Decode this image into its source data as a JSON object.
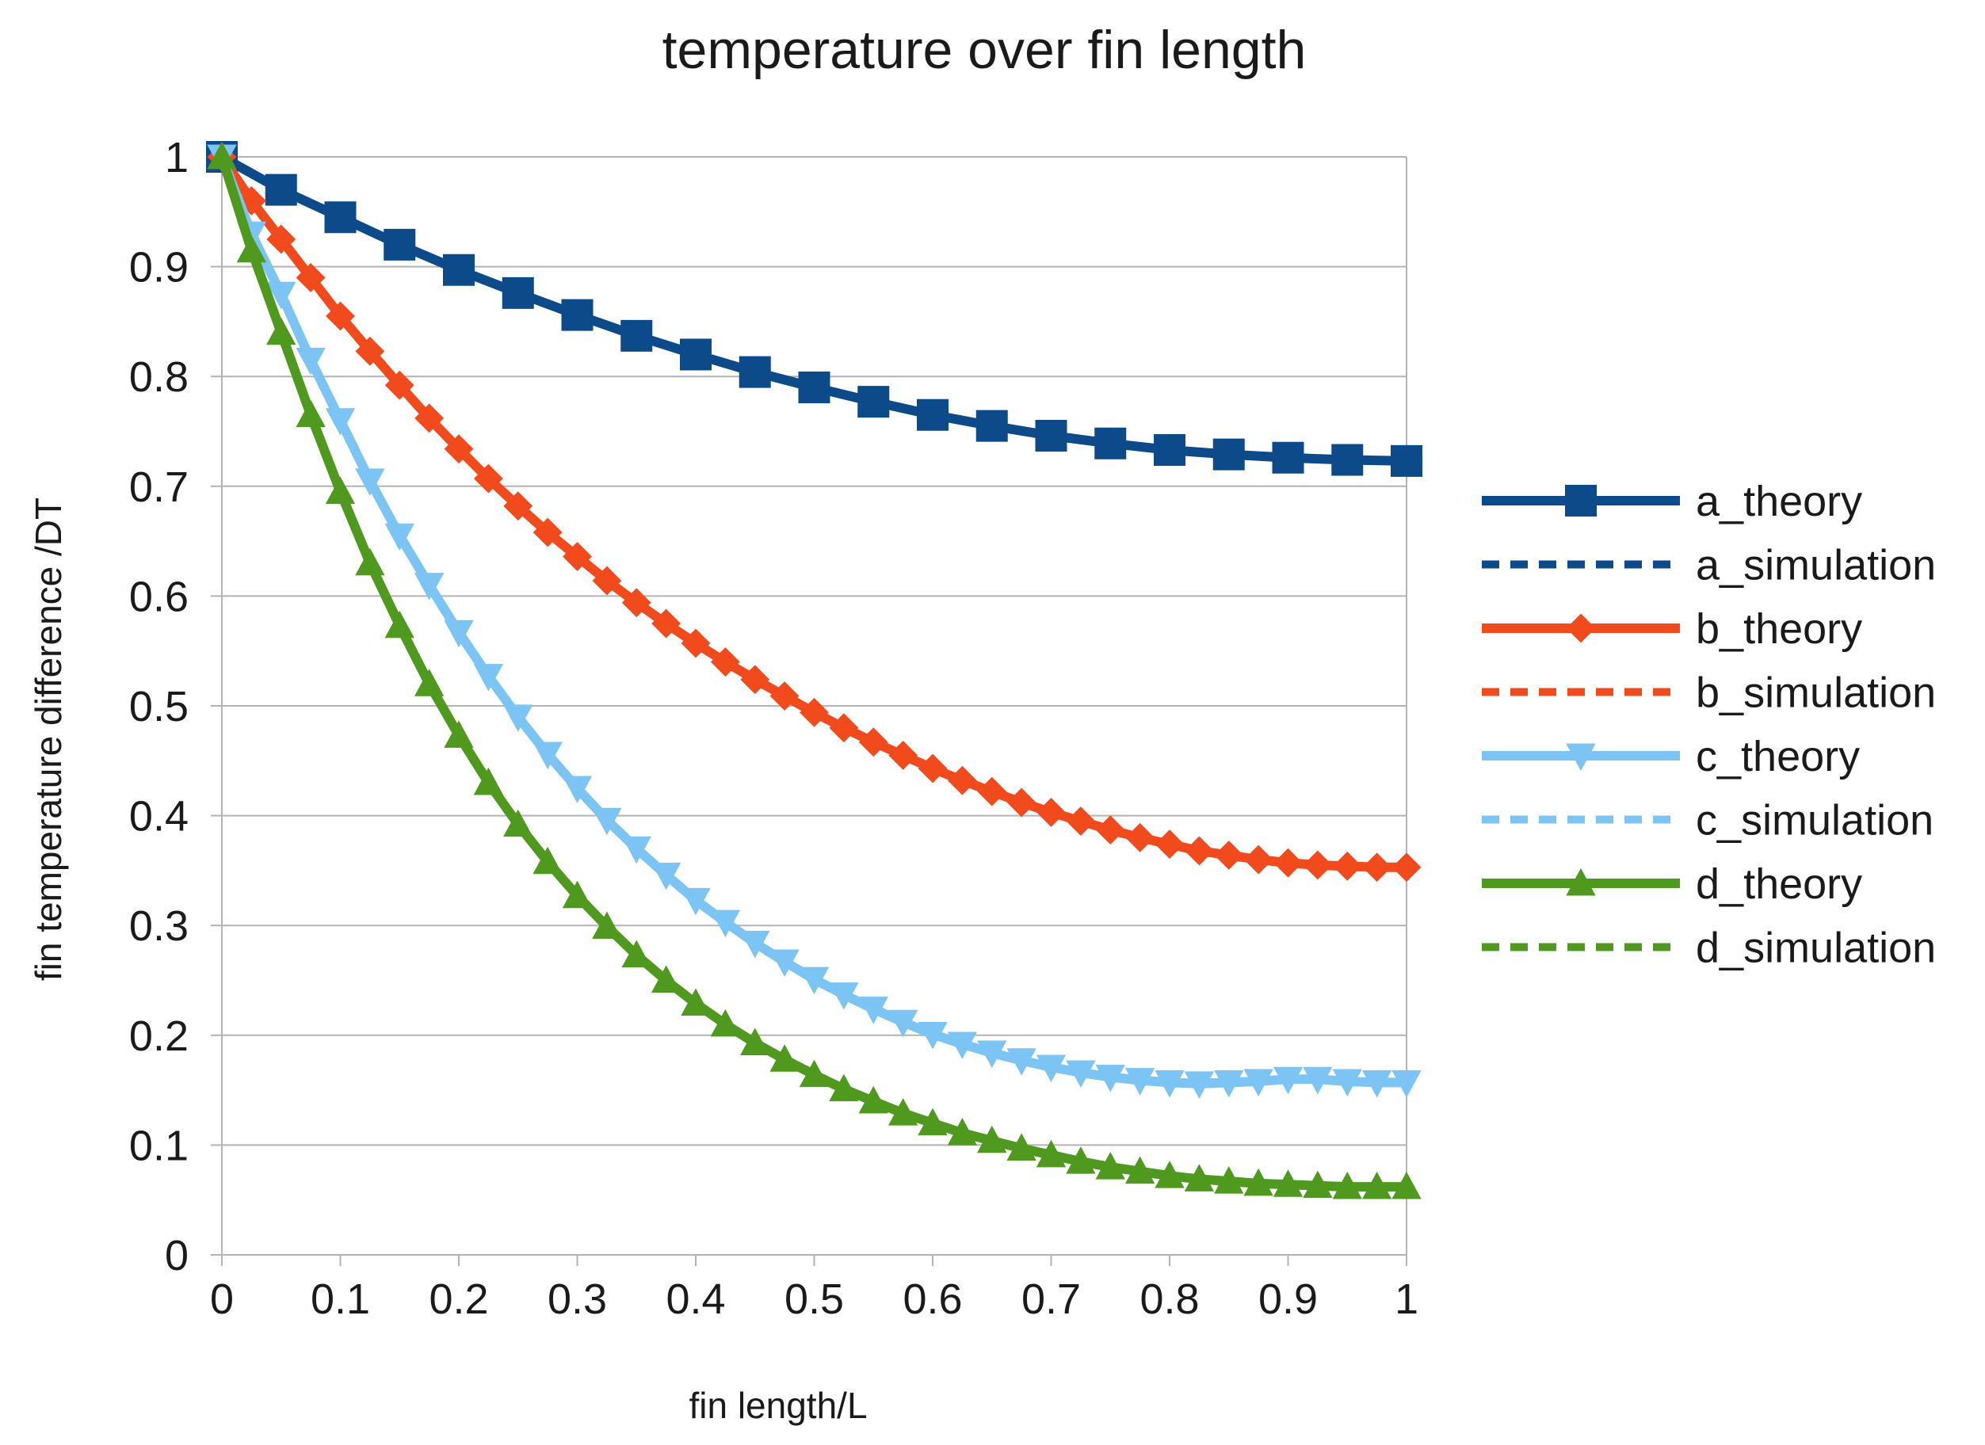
{
  "chart_data": {
    "type": "line",
    "title": "temperature over fin length",
    "xlabel": "fin length/L",
    "ylabel": "fin temperature difference /DT",
    "xlim": [
      0,
      1
    ],
    "ylim": [
      0,
      1
    ],
    "x_ticks": [
      0,
      0.1,
      0.2,
      0.3,
      0.4,
      0.5,
      0.6,
      0.7,
      0.8,
      0.9,
      1
    ],
    "x_tick_labels": [
      "0",
      "0.1",
      "0.2",
      "0.3",
      "0.4",
      "0.5",
      "0.6",
      "0.7",
      "0.8",
      "0.9",
      "1"
    ],
    "y_ticks": [
      0,
      0.1,
      0.2,
      0.3,
      0.4,
      0.5,
      0.6,
      0.7,
      0.8,
      0.9,
      1
    ],
    "y_tick_labels": [
      "0",
      "0.1",
      "0.2",
      "0.3",
      "0.4",
      "0.5",
      "0.6",
      "0.7",
      "0.8",
      "0.9",
      "1"
    ],
    "grid": "horizontal",
    "legend_position": "right",
    "series": [
      {
        "name": "a_theory",
        "line": "solid",
        "marker": "square",
        "color": "#0d4a8a",
        "x": [
          0,
          0.05,
          0.1,
          0.15,
          0.2,
          0.25,
          0.3,
          0.35,
          0.4,
          0.45,
          0.5,
          0.55,
          0.6,
          0.65,
          0.7,
          0.75,
          0.8,
          0.85,
          0.9,
          0.95,
          1
        ],
        "y": [
          1.0,
          0.97,
          0.945,
          0.92,
          0.897,
          0.876,
          0.856,
          0.837,
          0.82,
          0.804,
          0.79,
          0.777,
          0.765,
          0.755,
          0.746,
          0.739,
          0.733,
          0.729,
          0.726,
          0.724,
          0.723
        ]
      },
      {
        "name": "a_simulation",
        "line": "dashed",
        "marker": "none",
        "color": "#0d4a8a",
        "x": [
          0,
          0.05,
          0.1,
          0.15,
          0.2,
          0.25,
          0.3,
          0.35,
          0.4,
          0.45,
          0.5,
          0.55,
          0.6,
          0.65,
          0.7,
          0.75,
          0.8,
          0.85,
          0.9,
          0.95,
          1
        ],
        "y": [
          1.0,
          0.97,
          0.945,
          0.92,
          0.897,
          0.876,
          0.856,
          0.837,
          0.82,
          0.804,
          0.79,
          0.777,
          0.765,
          0.755,
          0.746,
          0.739,
          0.733,
          0.729,
          0.726,
          0.724,
          0.723
        ]
      },
      {
        "name": "b_theory",
        "line": "solid",
        "marker": "diamond",
        "color": "#f04a1d",
        "x": [
          0,
          0.025,
          0.05,
          0.075,
          0.1,
          0.125,
          0.15,
          0.175,
          0.2,
          0.225,
          0.25,
          0.275,
          0.3,
          0.325,
          0.35,
          0.375,
          0.4,
          0.425,
          0.45,
          0.475,
          0.5,
          0.525,
          0.55,
          0.575,
          0.6,
          0.625,
          0.65,
          0.675,
          0.7,
          0.725,
          0.75,
          0.775,
          0.8,
          0.825,
          0.85,
          0.875,
          0.9,
          0.925,
          0.95,
          0.975,
          1
        ],
        "y": [
          1.0,
          0.96,
          0.925,
          0.89,
          0.855,
          0.823,
          0.792,
          0.762,
          0.734,
          0.707,
          0.682,
          0.658,
          0.636,
          0.614,
          0.594,
          0.575,
          0.557,
          0.54,
          0.524,
          0.509,
          0.494,
          0.48,
          0.467,
          0.455,
          0.443,
          0.432,
          0.422,
          0.412,
          0.403,
          0.395,
          0.387,
          0.38,
          0.374,
          0.368,
          0.364,
          0.36,
          0.357,
          0.355,
          0.354,
          0.353,
          0.353
        ]
      },
      {
        "name": "b_simulation",
        "line": "dashed",
        "marker": "none",
        "color": "#f04a1d",
        "x": [
          0,
          0.025,
          0.05,
          0.075,
          0.1,
          0.125,
          0.15,
          0.175,
          0.2,
          0.225,
          0.25,
          0.275,
          0.3,
          0.325,
          0.35,
          0.375,
          0.4,
          0.425,
          0.45,
          0.475,
          0.5,
          0.525,
          0.55,
          0.575,
          0.6,
          0.625,
          0.65,
          0.675,
          0.7,
          0.725,
          0.75,
          0.775,
          0.8,
          0.825,
          0.85,
          0.875,
          0.9,
          0.925,
          0.95,
          0.975,
          1
        ],
        "y": [
          1.0,
          0.96,
          0.925,
          0.89,
          0.855,
          0.823,
          0.792,
          0.762,
          0.734,
          0.707,
          0.682,
          0.658,
          0.636,
          0.614,
          0.594,
          0.575,
          0.557,
          0.54,
          0.524,
          0.509,
          0.494,
          0.48,
          0.467,
          0.455,
          0.443,
          0.432,
          0.422,
          0.412,
          0.403,
          0.395,
          0.387,
          0.38,
          0.374,
          0.368,
          0.364,
          0.36,
          0.357,
          0.355,
          0.354,
          0.353,
          0.353
        ]
      },
      {
        "name": "c_theory",
        "line": "solid",
        "marker": "triangle-down",
        "color": "#7cc4f4",
        "x": [
          0,
          0.025,
          0.05,
          0.075,
          0.1,
          0.125,
          0.15,
          0.175,
          0.2,
          0.225,
          0.25,
          0.275,
          0.3,
          0.325,
          0.35,
          0.375,
          0.4,
          0.425,
          0.45,
          0.475,
          0.5,
          0.525,
          0.55,
          0.575,
          0.6,
          0.625,
          0.65,
          0.675,
          0.7,
          0.725,
          0.75,
          0.775,
          0.8,
          0.825,
          0.85,
          0.875,
          0.9,
          0.925,
          0.95,
          0.975,
          1
        ],
        "y": [
          1.0,
          0.93,
          0.875,
          0.815,
          0.76,
          0.705,
          0.655,
          0.61,
          0.567,
          0.527,
          0.49,
          0.456,
          0.425,
          0.396,
          0.37,
          0.346,
          0.323,
          0.303,
          0.284,
          0.267,
          0.251,
          0.237,
          0.224,
          0.212,
          0.201,
          0.192,
          0.184,
          0.177,
          0.171,
          0.166,
          0.162,
          0.159,
          0.157,
          0.156,
          0.157,
          0.158,
          0.16,
          0.16,
          0.158,
          0.157,
          0.157
        ]
      },
      {
        "name": "c_simulation",
        "line": "dashed",
        "marker": "none",
        "color": "#7cc4f4",
        "x": [
          0,
          0.025,
          0.05,
          0.075,
          0.1,
          0.125,
          0.15,
          0.175,
          0.2,
          0.225,
          0.25,
          0.275,
          0.3,
          0.325,
          0.35,
          0.375,
          0.4,
          0.425,
          0.45,
          0.475,
          0.5,
          0.525,
          0.55,
          0.575,
          0.6,
          0.625,
          0.65,
          0.675,
          0.7,
          0.725,
          0.75,
          0.775,
          0.8,
          0.825,
          0.85,
          0.875,
          0.9,
          0.925,
          0.95,
          0.975,
          1
        ],
        "y": [
          1.0,
          0.93,
          0.875,
          0.815,
          0.76,
          0.705,
          0.655,
          0.61,
          0.567,
          0.527,
          0.49,
          0.456,
          0.425,
          0.396,
          0.37,
          0.346,
          0.323,
          0.303,
          0.284,
          0.267,
          0.251,
          0.237,
          0.224,
          0.212,
          0.201,
          0.192,
          0.184,
          0.177,
          0.171,
          0.166,
          0.162,
          0.159,
          0.157,
          0.156,
          0.157,
          0.158,
          0.16,
          0.16,
          0.158,
          0.157,
          0.157
        ]
      },
      {
        "name": "d_theory",
        "line": "solid",
        "marker": "triangle-up",
        "color": "#4f9a1e",
        "x": [
          0,
          0.025,
          0.05,
          0.075,
          0.1,
          0.125,
          0.15,
          0.175,
          0.2,
          0.225,
          0.25,
          0.275,
          0.3,
          0.325,
          0.35,
          0.375,
          0.4,
          0.425,
          0.45,
          0.475,
          0.5,
          0.525,
          0.55,
          0.575,
          0.6,
          0.625,
          0.65,
          0.675,
          0.7,
          0.725,
          0.75,
          0.775,
          0.8,
          0.825,
          0.85,
          0.875,
          0.9,
          0.925,
          0.95,
          0.975,
          1
        ],
        "y": [
          1.0,
          0.915,
          0.84,
          0.765,
          0.695,
          0.63,
          0.573,
          0.52,
          0.473,
          0.43,
          0.392,
          0.358,
          0.327,
          0.299,
          0.273,
          0.25,
          0.229,
          0.21,
          0.193,
          0.178,
          0.164,
          0.151,
          0.14,
          0.129,
          0.12,
          0.111,
          0.104,
          0.097,
          0.091,
          0.085,
          0.08,
          0.076,
          0.072,
          0.069,
          0.067,
          0.065,
          0.064,
          0.063,
          0.062,
          0.062,
          0.062
        ]
      },
      {
        "name": "d_simulation",
        "line": "dashed",
        "marker": "none",
        "color": "#4f9a1e",
        "x": [
          0,
          0.025,
          0.05,
          0.075,
          0.1,
          0.125,
          0.15,
          0.175,
          0.2,
          0.225,
          0.25,
          0.275,
          0.3,
          0.325,
          0.35,
          0.375,
          0.4,
          0.425,
          0.45,
          0.475,
          0.5,
          0.525,
          0.55,
          0.575,
          0.6,
          0.625,
          0.65,
          0.675,
          0.7,
          0.725,
          0.75,
          0.775,
          0.8,
          0.825,
          0.85,
          0.875,
          0.9,
          0.925,
          0.95,
          0.975,
          1
        ],
        "y": [
          1.0,
          0.915,
          0.84,
          0.765,
          0.695,
          0.63,
          0.573,
          0.52,
          0.473,
          0.43,
          0.392,
          0.358,
          0.327,
          0.299,
          0.273,
          0.25,
          0.229,
          0.21,
          0.193,
          0.178,
          0.164,
          0.151,
          0.14,
          0.129,
          0.12,
          0.111,
          0.104,
          0.097,
          0.091,
          0.085,
          0.08,
          0.076,
          0.072,
          0.069,
          0.067,
          0.065,
          0.064,
          0.063,
          0.062,
          0.062,
          0.062
        ]
      }
    ]
  }
}
